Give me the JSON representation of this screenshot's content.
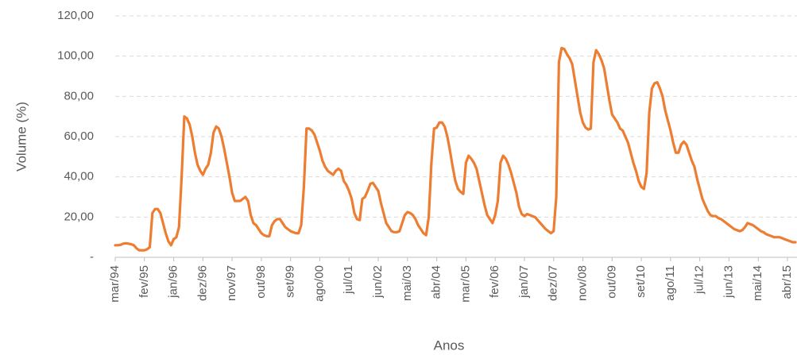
{
  "chart_data": {
    "type": "line",
    "y_label": "Volume (%)",
    "x_label": "Anos",
    "ylim": [
      0,
      120
    ],
    "yticks": [
      {
        "value": 0,
        "label": "-"
      },
      {
        "value": 20,
        "label": "20,00"
      },
      {
        "value": 40,
        "label": "40,00"
      },
      {
        "value": 60,
        "label": "60,00"
      },
      {
        "value": 80,
        "label": "80,00"
      },
      {
        "value": 100,
        "label": "100,00"
      },
      {
        "value": 120,
        "label": "120,00"
      }
    ],
    "grid": true,
    "categories": [
      "mar/94",
      null,
      null,
      null,
      null,
      null,
      null,
      null,
      null,
      null,
      null,
      "fev/95",
      null,
      null,
      null,
      null,
      null,
      null,
      null,
      null,
      null,
      null,
      "jan/96",
      null,
      null,
      null,
      null,
      null,
      null,
      null,
      null,
      null,
      null,
      "dez/96",
      null,
      null,
      null,
      null,
      null,
      null,
      null,
      null,
      null,
      null,
      "nov/97",
      null,
      null,
      null,
      null,
      null,
      null,
      null,
      null,
      null,
      null,
      "out/98",
      null,
      null,
      null,
      null,
      null,
      null,
      null,
      null,
      null,
      null,
      "set/99",
      null,
      null,
      null,
      null,
      null,
      null,
      null,
      null,
      null,
      null,
      "ago/00",
      null,
      null,
      null,
      null,
      null,
      null,
      null,
      null,
      null,
      null,
      "jul/01",
      null,
      null,
      null,
      null,
      null,
      null,
      null,
      null,
      null,
      null,
      "jun/02",
      null,
      null,
      null,
      null,
      null,
      null,
      null,
      null,
      null,
      null,
      "mai/03",
      null,
      null,
      null,
      null,
      null,
      null,
      null,
      null,
      null,
      null,
      "abr/04",
      null,
      null,
      null,
      null,
      null,
      null,
      null,
      null,
      null,
      null,
      "mar/05",
      null,
      null,
      null,
      null,
      null,
      null,
      null,
      null,
      null,
      null,
      "fev/06",
      null,
      null,
      null,
      null,
      null,
      null,
      null,
      null,
      null,
      null,
      "jan/07",
      null,
      null,
      null,
      null,
      null,
      null,
      null,
      null,
      null,
      null,
      "dez/07",
      null,
      null,
      null,
      null,
      null,
      null,
      null,
      null,
      null,
      null,
      "nov/08",
      null,
      null,
      null,
      null,
      null,
      null,
      null,
      null,
      null,
      null,
      "out/09",
      null,
      null,
      null,
      null,
      null,
      null,
      null,
      null,
      null,
      null,
      "set/10",
      null,
      null,
      null,
      null,
      null,
      null,
      null,
      null,
      null,
      null,
      "ago/11",
      null,
      null,
      null,
      null,
      null,
      null,
      null,
      null,
      null,
      null,
      "jul/12",
      null,
      null,
      null,
      null,
      null,
      null,
      null,
      null,
      null,
      null,
      "jun/13",
      null,
      null,
      null,
      null,
      null,
      null,
      null,
      null,
      null,
      null,
      "mai/14",
      null,
      null,
      null,
      null,
      null,
      null,
      null,
      null,
      null,
      null,
      "abr/15",
      null,
      null,
      null
    ],
    "color": "#ed7d31",
    "values": [
      6,
      6,
      6.2,
      6.8,
      7,
      6.8,
      6.5,
      6,
      4.5,
      3.5,
      3.5,
      3.5,
      4,
      5,
      22,
      24,
      24,
      22,
      17,
      12,
      8,
      6,
      9,
      10,
      15,
      40,
      70,
      69,
      66,
      60,
      52,
      46,
      43,
      41,
      44,
      46,
      52,
      62,
      65,
      64,
      60,
      54,
      47,
      40,
      32,
      28,
      28,
      28,
      29,
      30,
      28,
      21,
      17,
      16,
      14,
      12,
      11,
      10.5,
      10.5,
      16,
      18,
      19,
      19,
      17,
      15,
      14,
      13,
      12.5,
      12,
      12,
      16,
      35,
      64,
      64,
      63,
      61,
      57,
      53,
      48,
      45,
      43,
      42,
      41,
      43,
      44,
      43,
      38,
      36,
      33,
      29,
      22,
      19,
      18.5,
      29,
      30,
      33,
      36.5,
      37,
      35,
      33,
      27,
      22,
      17,
      15,
      13,
      12.5,
      12.5,
      13,
      17,
      21,
      22.5,
      22,
      21,
      19,
      16,
      14,
      12,
      11,
      20,
      47,
      64,
      64.5,
      67,
      67,
      65,
      60,
      53,
      45,
      38,
      34,
      32.5,
      31.5,
      47,
      50.5,
      49,
      47,
      44,
      38,
      32,
      26,
      21,
      19,
      17,
      21,
      28,
      47,
      50.5,
      49,
      46,
      42,
      37,
      32,
      25,
      21.5,
      20.5,
      21.5,
      21,
      20.5,
      20,
      18.5,
      17,
      15.5,
      14,
      13,
      12,
      13,
      30,
      97,
      104,
      103.5,
      101,
      99,
      96,
      88,
      80,
      72,
      67,
      64.5,
      63.5,
      64,
      97,
      103,
      101,
      98,
      94,
      86,
      78,
      71,
      69,
      67,
      64,
      63,
      60,
      57,
      52,
      47,
      43,
      38,
      35,
      34,
      42,
      72,
      84,
      86.5,
      87,
      84,
      80,
      73,
      68,
      63,
      57,
      52,
      52,
      56,
      57.5,
      56,
      52,
      48,
      45,
      39,
      34,
      29,
      26,
      23,
      21,
      20.5,
      20.5,
      19.5,
      19,
      18,
      17,
      16,
      15,
      14,
      13.5,
      13,
      13.5,
      15,
      17,
      16.5,
      16,
      15,
      14,
      13,
      12.5,
      11.5,
      11,
      10.5,
      10,
      10,
      10,
      9.5,
      9,
      8.5,
      8,
      7.5,
      7.5
    ]
  }
}
